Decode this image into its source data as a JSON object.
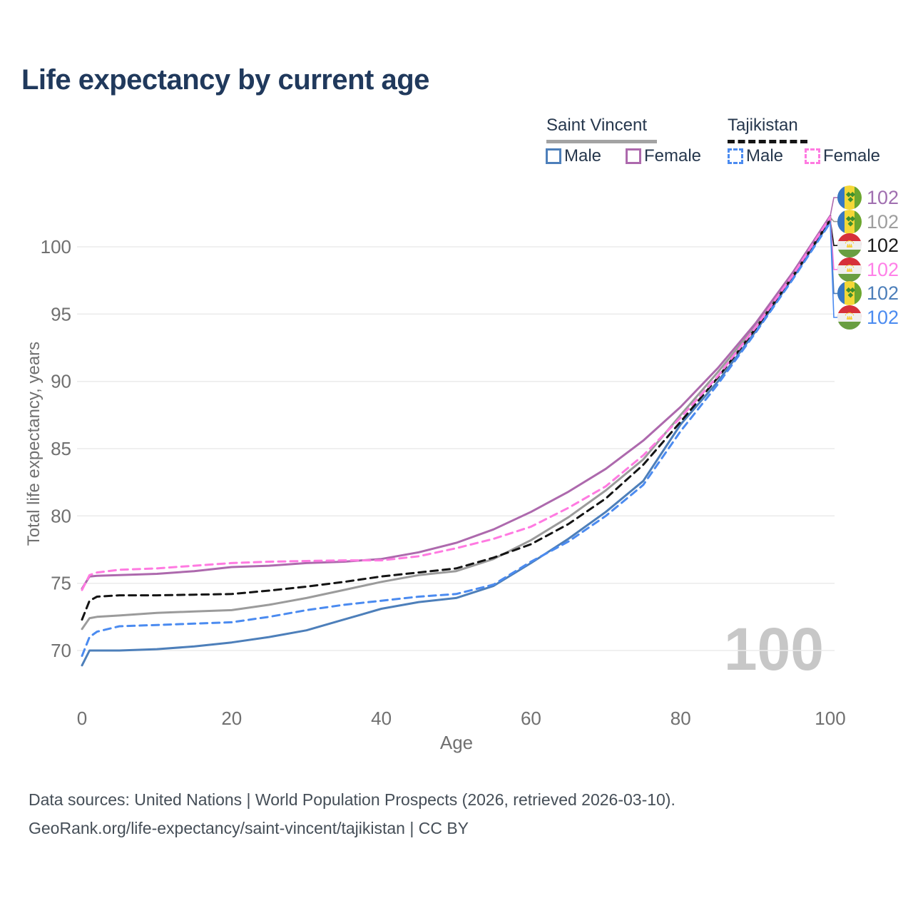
{
  "page": {
    "title": "Life expectancy by current age",
    "watermark": "100"
  },
  "legend": {
    "groups": [
      {
        "name": "Saint Vincent",
        "line_style": "solid",
        "underline_color": "#a3a3a3",
        "items": [
          {
            "label": "Male",
            "color": "#4d7fba",
            "dashed": false
          },
          {
            "label": "Female",
            "color": "#ad69ad",
            "dashed": false
          }
        ]
      },
      {
        "name": "Tajikistan",
        "line_style": "dashed",
        "underline_color": "#141414",
        "items": [
          {
            "label": "Male",
            "color": "#4b8bf0",
            "dashed": true
          },
          {
            "label": "Female",
            "color": "#ff7ae1",
            "dashed": true
          }
        ]
      }
    ]
  },
  "chart_data": {
    "type": "line",
    "title": "Life expectancy by current age",
    "xlabel": "Age",
    "ylabel": "Total life expectancy, years",
    "xlim": [
      0,
      100
    ],
    "ylim": [
      68.5,
      103
    ],
    "xticks": [
      0,
      20,
      40,
      60,
      80,
      100
    ],
    "yticks": [
      70,
      75,
      80,
      85,
      90,
      95,
      100
    ],
    "grid": "horizontal-only",
    "legend_position": "top-right",
    "x": [
      0,
      1,
      2,
      5,
      10,
      15,
      20,
      25,
      30,
      35,
      40,
      45,
      50,
      55,
      60,
      65,
      70,
      75,
      80,
      85,
      90,
      95,
      100
    ],
    "series": [
      {
        "name": "Saint Vincent Total",
        "country": "Saint Vincent",
        "sex": "total",
        "color": "#9b9b9b",
        "dashed": false,
        "values": [
          71.6,
          72.4,
          72.5,
          72.6,
          72.8,
          72.9,
          73.0,
          73.4,
          73.9,
          74.5,
          75.1,
          75.6,
          75.9,
          76.8,
          78.2,
          79.9,
          81.9,
          84.2,
          87.5,
          90.7,
          94.1,
          98.0,
          102.2
        ]
      },
      {
        "name": "Saint Vincent Male",
        "country": "Saint Vincent",
        "sex": "male",
        "color": "#4d7fba",
        "dashed": false,
        "values": [
          68.9,
          70.0,
          70.0,
          70.0,
          70.1,
          70.3,
          70.6,
          71.0,
          71.5,
          72.3,
          73.1,
          73.6,
          73.9,
          74.8,
          76.5,
          78.3,
          80.3,
          82.6,
          86.8,
          90.0,
          93.7,
          97.7,
          101.9
        ]
      },
      {
        "name": "Saint Vincent Female",
        "country": "Saint Vincent",
        "sex": "female",
        "color": "#ad69ad",
        "dashed": false,
        "values": [
          74.6,
          75.5,
          75.55,
          75.6,
          75.7,
          75.9,
          76.2,
          76.3,
          76.5,
          76.6,
          76.8,
          77.3,
          78.0,
          79.0,
          80.3,
          81.8,
          83.5,
          85.6,
          88.1,
          91.0,
          94.3,
          98.1,
          102.3
        ]
      },
      {
        "name": "Tajikistan Total",
        "country": "Tajikistan",
        "sex": "total",
        "color": "#141414",
        "dashed": true,
        "values": [
          72.3,
          73.7,
          74.0,
          74.1,
          74.1,
          74.15,
          74.2,
          74.45,
          74.75,
          75.1,
          75.5,
          75.8,
          76.1,
          76.9,
          77.9,
          79.4,
          81.3,
          83.8,
          87.0,
          90.3,
          93.9,
          97.8,
          102.0
        ]
      },
      {
        "name": "Tajikistan Male",
        "country": "Tajikistan",
        "sex": "male",
        "color": "#4b8bf0",
        "dashed": true,
        "values": [
          69.6,
          71.0,
          71.4,
          71.8,
          71.9,
          72.0,
          72.1,
          72.5,
          73.0,
          73.4,
          73.7,
          74.0,
          74.2,
          74.9,
          76.6,
          78.1,
          80.0,
          82.3,
          86.3,
          89.8,
          93.6,
          97.6,
          101.8
        ]
      },
      {
        "name": "Tajikistan Female",
        "country": "Tajikistan",
        "sex": "female",
        "color": "#ff7ae1",
        "dashed": true,
        "values": [
          74.5,
          75.6,
          75.8,
          76.0,
          76.1,
          76.3,
          76.5,
          76.6,
          76.65,
          76.7,
          76.7,
          77.0,
          77.6,
          78.3,
          79.2,
          80.6,
          82.2,
          84.5,
          87.3,
          90.4,
          94.0,
          97.9,
          102.2
        ]
      }
    ],
    "end_labels": [
      {
        "flag": "saint-vincent",
        "value": "102",
        "color": "#a06fb0",
        "series": "Saint Vincent Female"
      },
      {
        "flag": "saint-vincent",
        "value": "102",
        "color": "#9e9e9e",
        "series": "Saint Vincent Total"
      },
      {
        "flag": "tajikistan",
        "value": "102",
        "color": "#1a1a1a",
        "series": "Tajikistan Total"
      },
      {
        "flag": "tajikistan",
        "value": "102",
        "color": "#ff80e8",
        "series": "Tajikistan Female"
      },
      {
        "flag": "saint-vincent",
        "value": "102",
        "color": "#4d7fba",
        "series": "Saint Vincent Male"
      },
      {
        "flag": "tajikistan",
        "value": "102",
        "color": "#4b8bf0",
        "series": "Tajikistan Male"
      }
    ]
  },
  "footer": {
    "line1": "Data sources: United Nations | World Population Prospects (2026, retrieved 2026-03-10).",
    "line2": "GeoRank.org/life-expectancy/saint-vincent/tajikistan | CC BY"
  }
}
